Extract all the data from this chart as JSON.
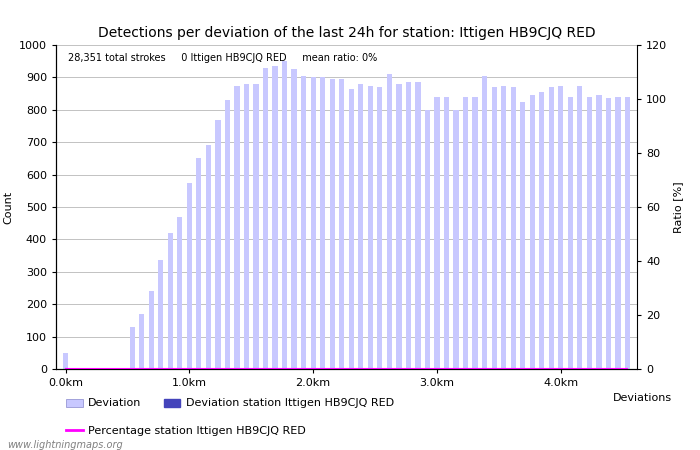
{
  "title": "Detections per deviation of the last 24h for station: Ittigen HB9CJQ RED",
  "stats_text": "28,351 total strokes     0 Ittigen HB9CJQ RED     mean ratio: 0%",
  "xlabel": "Deviations",
  "ylabel_left": "Count",
  "ylabel_right": "Ratio [%]",
  "ylim_left": [
    0,
    1000
  ],
  "ylim_right": [
    0,
    120
  ],
  "yticks_left": [
    0,
    100,
    200,
    300,
    400,
    500,
    600,
    700,
    800,
    900,
    1000
  ],
  "yticks_right": [
    0,
    20,
    40,
    60,
    80,
    100,
    120
  ],
  "bar_color_deviation": "#c8c8ff",
  "bar_color_station": "#4444bb",
  "line_color_percentage": "#ff00ff",
  "watermark": "www.lightningmaps.org",
  "xtick_labels": [
    "0.0km",
    "1.0km",
    "2.0km",
    "3.0km",
    "4.0km"
  ],
  "xtick_positions": [
    0,
    13,
    26,
    39,
    52
  ],
  "deviation_values": [
    50,
    0,
    0,
    0,
    0,
    0,
    0,
    130,
    170,
    240,
    335,
    420,
    470,
    575,
    650,
    690,
    770,
    830,
    875,
    880,
    880,
    930,
    935,
    950,
    925,
    905,
    900,
    900,
    895,
    895,
    865,
    880,
    875,
    870,
    910,
    880,
    885,
    885,
    800,
    840,
    840,
    800,
    840,
    840,
    905,
    870,
    875,
    870,
    825,
    845,
    855,
    870,
    875,
    840,
    875,
    840,
    845,
    835,
    840,
    840
  ],
  "station_values": [
    0,
    0,
    0,
    0,
    0,
    0,
    0,
    0,
    0,
    0,
    0,
    0,
    0,
    0,
    0,
    0,
    0,
    0,
    0,
    0,
    0,
    0,
    0,
    0,
    0,
    0,
    0,
    0,
    0,
    0,
    0,
    0,
    0,
    0,
    0,
    0,
    0,
    0,
    0,
    0,
    0,
    0,
    0,
    0,
    0,
    0,
    0,
    0,
    0,
    0,
    0,
    0,
    0,
    0,
    0,
    0,
    0,
    0,
    0,
    0
  ],
  "percentage_values": [
    0,
    0,
    0,
    0,
    0,
    0,
    0,
    0,
    0,
    0,
    0,
    0,
    0,
    0,
    0,
    0,
    0,
    0,
    0,
    0,
    0,
    0,
    0,
    0,
    0,
    0,
    0,
    0,
    0,
    0,
    0,
    0,
    0,
    0,
    0,
    0,
    0,
    0,
    0,
    0,
    0,
    0,
    0,
    0,
    0,
    0,
    0,
    0,
    0,
    0,
    0,
    0,
    0,
    0,
    0,
    0,
    0,
    0,
    0,
    0
  ],
  "bg_color": "#ffffff",
  "grid_color": "#aaaaaa",
  "title_fontsize": 10,
  "axis_fontsize": 8,
  "tick_fontsize": 8,
  "legend_fontsize": 8,
  "legend1_label1": "Deviation",
  "legend1_label2": "Deviation station Ittigen HB9CJQ RED",
  "legend2_label": "Percentage station Ittigen HB9CJQ RED"
}
